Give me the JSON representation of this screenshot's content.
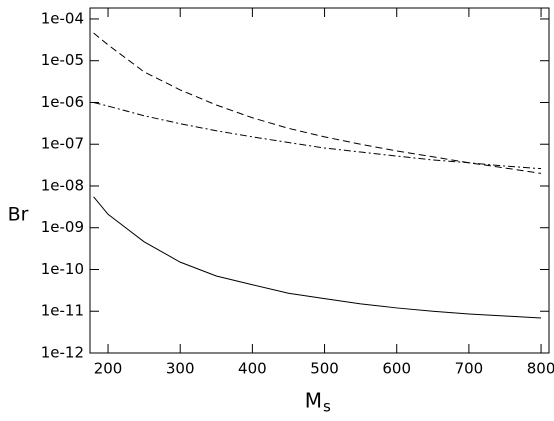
{
  "chart_data": {
    "type": "line",
    "y_label": "Br",
    "x_label": "M",
    "x_label_subscript": "s",
    "x": [
      180,
      200,
      250,
      300,
      350,
      400,
      450,
      500,
      550,
      600,
      650,
      700,
      750,
      800
    ],
    "series": [
      {
        "color": "#000000",
        "dash": "solid",
        "values": [
          5.5e-09,
          2.1e-09,
          4.6e-10,
          1.5e-10,
          7e-11,
          4.3e-11,
          2.7e-11,
          2e-11,
          1.5e-11,
          1.2e-11,
          1e-11,
          8.6e-12,
          7.7e-12,
          6.9e-12
        ]
      },
      {
        "color": "#000000",
        "dash": "dashed",
        "values": [
          4.6e-05,
          2.4e-05,
          5.4e-06,
          2e-06,
          8.7e-07,
          4.3e-07,
          2.4e-07,
          1.5e-07,
          1e-07,
          6.9e-08,
          5e-08,
          3.6e-08,
          2.7e-08,
          2e-08
        ]
      },
      {
        "color": "#000000",
        "dash": "dashdot",
        "values": [
          1e-06,
          8.2e-07,
          4.8e-07,
          3.1e-07,
          2.1e-07,
          1.5e-07,
          1.1e-07,
          8.1e-08,
          6.5e-08,
          5.2e-08,
          4.2e-08,
          3.6e-08,
          3e-08,
          2.6e-08
        ]
      }
    ],
    "xlim": [
      175,
      811
    ],
    "xticks": [
      200,
      300,
      400,
      500,
      600,
      700,
      800
    ],
    "ylim": [
      1e-12,
      0.000183
    ],
    "log_y": true,
    "yticks": [
      {
        "value": 1e-12,
        "label": "1e-12"
      },
      {
        "value": 1e-11,
        "label": "1e-11"
      },
      {
        "value": 1e-10,
        "label": "1e-10"
      },
      {
        "value": 1e-09,
        "label": "1e-09"
      },
      {
        "value": 1e-08,
        "label": "1e-08"
      },
      {
        "value": 1e-07,
        "label": "1e-07"
      },
      {
        "value": 1e-06,
        "label": "1e-06"
      },
      {
        "value": 1e-05,
        "label": "1e-05"
      },
      {
        "value": 0.0001,
        "label": "1e-04"
      }
    ]
  }
}
